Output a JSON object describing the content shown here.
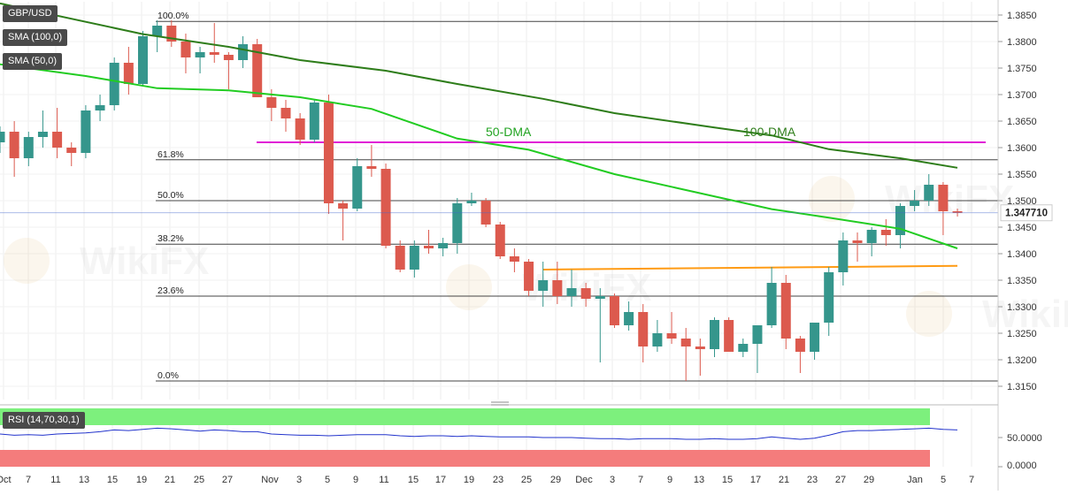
{
  "chart_data": {
    "type": "candlestick",
    "symbol": "GBP/USD",
    "legend": [
      "GBP/USD",
      "SMA (100,0)",
      "SMA (50,0)"
    ],
    "y_range": [
      1.3125,
      1.3875
    ],
    "y_ticks": [
      "1.3850",
      "1.3800",
      "1.3750",
      "1.3700",
      "1.3650",
      "1.3600",
      "1.3550",
      "1.3500",
      "1.3450",
      "1.3400",
      "1.3350",
      "1.3300",
      "1.3250",
      "1.3200",
      "1.3150"
    ],
    "x_labels": [
      "Oct",
      "7",
      "11",
      "13",
      "15",
      "19",
      "21",
      "25",
      "27",
      "Nov",
      "3",
      "5",
      "9",
      "11",
      "15",
      "17",
      "19",
      "23",
      "25",
      "29",
      "Dec",
      "3",
      "7",
      "9",
      "13",
      "15",
      "17",
      "21",
      "23",
      "27",
      "29",
      "Jan",
      "5",
      "7"
    ],
    "last_price_label": "1.347710",
    "last_price": 1.34771,
    "colors": {
      "up": "#35968c",
      "down": "#dc5a4e",
      "sma50": "#22cc22",
      "sma100": "#2e7d1a",
      "resistance": "#e01ed6",
      "support": "#ff9b14",
      "rsi": "#2233cc"
    },
    "candles": [
      [
        1.361,
        1.364,
        1.359,
        1.363
      ],
      [
        1.363,
        1.365,
        1.3545,
        1.358
      ],
      [
        1.358,
        1.363,
        1.3565,
        1.362
      ],
      [
        1.362,
        1.367,
        1.36,
        1.363
      ],
      [
        1.363,
        1.3675,
        1.358,
        1.36
      ],
      [
        1.36,
        1.361,
        1.3565,
        1.359
      ],
      [
        1.359,
        1.368,
        1.358,
        1.367
      ],
      [
        1.367,
        1.37,
        1.365,
        1.368
      ],
      [
        1.368,
        1.377,
        1.367,
        1.376
      ],
      [
        1.376,
        1.379,
        1.37,
        1.372
      ],
      [
        1.372,
        1.382,
        1.3715,
        1.381
      ],
      [
        1.381,
        1.384,
        1.378,
        1.383
      ],
      [
        1.383,
        1.384,
        1.379,
        1.38
      ],
      [
        1.38,
        1.3815,
        1.374,
        1.377
      ],
      [
        1.377,
        1.379,
        1.374,
        1.378
      ],
      [
        1.378,
        1.3835,
        1.376,
        1.3775
      ],
      [
        1.3775,
        1.378,
        1.371,
        1.3765
      ],
      [
        1.3765,
        1.381,
        1.375,
        1.3795
      ],
      [
        1.3795,
        1.3805,
        1.3695,
        1.3695
      ],
      [
        1.3695,
        1.371,
        1.365,
        1.3675
      ],
      [
        1.3675,
        1.369,
        1.363,
        1.3655
      ],
      [
        1.3655,
        1.3665,
        1.3605,
        1.3615
      ],
      [
        1.3615,
        1.369,
        1.361,
        1.3685
      ],
      [
        1.3685,
        1.37,
        1.3475,
        1.3495
      ],
      [
        1.3495,
        1.35,
        1.3425,
        1.3485
      ],
      [
        1.3485,
        1.358,
        1.348,
        1.3565
      ],
      [
        1.3565,
        1.3605,
        1.3545,
        1.356
      ],
      [
        1.356,
        1.357,
        1.341,
        1.3415
      ],
      [
        1.3415,
        1.3425,
        1.3365,
        1.337
      ],
      [
        1.337,
        1.3425,
        1.3355,
        1.3415
      ],
      [
        1.3415,
        1.3445,
        1.34,
        1.341
      ],
      [
        1.341,
        1.343,
        1.3395,
        1.342
      ],
      [
        1.342,
        1.3505,
        1.34,
        1.3495
      ],
      [
        1.3495,
        1.3515,
        1.349,
        1.35
      ],
      [
        1.35,
        1.3505,
        1.345,
        1.3455
      ],
      [
        1.3455,
        1.346,
        1.339,
        1.3395
      ],
      [
        1.3395,
        1.341,
        1.3365,
        1.3385
      ],
      [
        1.3385,
        1.339,
        1.332,
        1.333
      ],
      [
        1.333,
        1.3385,
        1.33,
        1.335
      ],
      [
        1.335,
        1.3385,
        1.3305,
        1.332
      ],
      [
        1.332,
        1.337,
        1.33,
        1.3335
      ],
      [
        1.3335,
        1.3345,
        1.33,
        1.3315
      ],
      [
        1.3315,
        1.3335,
        1.3195,
        1.332
      ],
      [
        1.332,
        1.3325,
        1.326,
        1.3265
      ],
      [
        1.3265,
        1.331,
        1.3255,
        1.329
      ],
      [
        1.329,
        1.3305,
        1.3195,
        1.3225
      ],
      [
        1.3225,
        1.3275,
        1.3215,
        1.325
      ],
      [
        1.325,
        1.329,
        1.323,
        1.324
      ],
      [
        1.324,
        1.326,
        1.316,
        1.3225
      ],
      [
        1.3225,
        1.324,
        1.317,
        1.322
      ],
      [
        1.322,
        1.328,
        1.3205,
        1.3275
      ],
      [
        1.3275,
        1.328,
        1.3215,
        1.3215
      ],
      [
        1.3215,
        1.324,
        1.3205,
        1.323
      ],
      [
        1.323,
        1.326,
        1.3175,
        1.3265
      ],
      [
        1.3265,
        1.3375,
        1.326,
        1.3345
      ],
      [
        1.3345,
        1.336,
        1.322,
        1.324
      ],
      [
        1.324,
        1.3245,
        1.3175,
        1.3215
      ],
      [
        1.3215,
        1.327,
        1.32,
        1.327
      ],
      [
        1.327,
        1.3375,
        1.3245,
        1.3365
      ],
      [
        1.3365,
        1.344,
        1.334,
        1.3425
      ],
      [
        1.3425,
        1.344,
        1.3385,
        1.342
      ],
      [
        1.342,
        1.345,
        1.3395,
        1.3445
      ],
      [
        1.3445,
        1.3465,
        1.3415,
        1.3435
      ],
      [
        1.3435,
        1.3495,
        1.341,
        1.349
      ],
      [
        1.349,
        1.352,
        1.348,
        1.35
      ],
      [
        1.35,
        1.355,
        1.349,
        1.353
      ],
      [
        1.353,
        1.3535,
        1.3435,
        1.348
      ],
      [
        1.348,
        1.3485,
        1.347,
        1.34771
      ]
    ],
    "sma50": [
      [
        0,
        1.3757
      ],
      [
        6,
        1.3735
      ],
      [
        11,
        1.3712
      ],
      [
        16,
        1.3708
      ],
      [
        21,
        1.3695
      ],
      [
        26,
        1.3673
      ],
      [
        32,
        1.3617
      ],
      [
        37,
        1.3596
      ],
      [
        43,
        1.355
      ],
      [
        48,
        1.352
      ],
      [
        54,
        1.3484
      ],
      [
        58,
        1.3468
      ],
      [
        63,
        1.3447
      ],
      [
        67,
        1.341
      ]
    ],
    "sma100": [
      [
        0,
        1.3872
      ],
      [
        10,
        1.3814
      ],
      [
        16,
        1.379
      ],
      [
        21,
        1.3765
      ],
      [
        27,
        1.3745
      ],
      [
        32,
        1.372
      ],
      [
        38,
        1.3692
      ],
      [
        43,
        1.3665
      ],
      [
        50,
        1.3638
      ],
      [
        54,
        1.3623
      ],
      [
        58,
        1.3597
      ],
      [
        63,
        1.358
      ],
      [
        67,
        1.3562
      ]
    ],
    "levels": {
      "resistance": [
        1.361,
        1.361
      ],
      "support": [
        1.337,
        1.3377
      ]
    },
    "fibonacci": [
      {
        "label": "100.0%",
        "value": 1.3838
      },
      {
        "label": "61.8%",
        "value": 1.3577
      },
      {
        "label": "50.0%",
        "value": 1.35
      },
      {
        "label": "38.2%",
        "value": 1.3418
      },
      {
        "label": "23.6%",
        "value": 1.332
      },
      {
        "label": "0.0%",
        "value": 1.316
      }
    ],
    "annotations": [
      "50-DMA",
      "100-DMA"
    ],
    "rsi": {
      "label": "RSI (14,70,30,1)",
      "ticks": [
        "50.0000",
        "0.0000"
      ],
      "values": [
        56,
        54,
        55,
        54,
        56,
        57,
        58,
        60,
        63,
        62,
        64,
        66,
        65,
        63,
        61,
        63,
        62,
        60,
        60,
        56,
        55,
        54,
        54,
        53,
        54,
        55,
        55,
        55,
        53,
        52,
        53,
        53,
        52,
        53,
        52,
        51,
        51,
        51,
        50,
        50,
        50,
        49,
        48,
        48,
        47,
        48,
        48,
        48,
        47,
        47,
        48,
        47,
        47,
        48,
        51,
        49,
        47,
        49,
        54,
        60,
        62,
        62,
        63,
        64,
        65,
        66,
        64,
        63
      ]
    }
  }
}
